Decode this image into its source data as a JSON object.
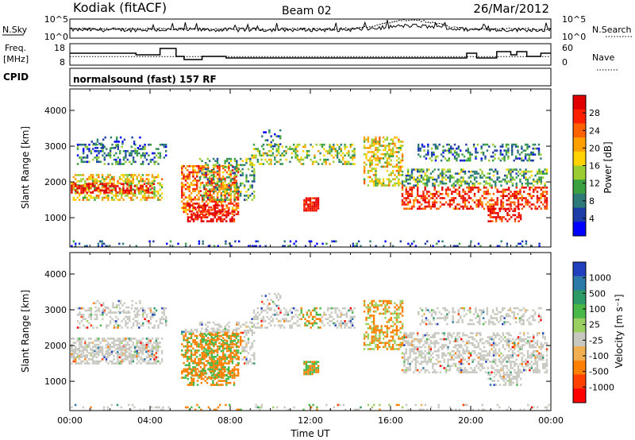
{
  "header": {
    "station": "Kodiak (fitACF)",
    "beam": "Beam 02",
    "date": "26/Mar/2012",
    "cpid_label": "CPID",
    "cpid_value": "normalsound (fast) 157 RF"
  },
  "chart_data": [
    {
      "type": "line",
      "name": "noise",
      "left_label": "N.Sky",
      "left_ticks": [
        "10^5",
        "10^0"
      ],
      "right_label": "N.Search",
      "right_ticks": [
        "10^5",
        "10^0"
      ],
      "series": [
        {
          "label": "N.Sky",
          "style": "solid"
        },
        {
          "label": "N.Search",
          "style": "dotted"
        }
      ]
    },
    {
      "type": "line",
      "name": "frequency",
      "left_label_1": "Freq.",
      "left_label_2": "[MHz]",
      "left_ticks": [
        "18",
        "8"
      ],
      "right_label": "Nave",
      "right_ticks": [
        "60",
        "0"
      ],
      "freq_mhz": {
        "x": [
          0,
          1.5,
          3.3,
          4.5,
          5.3,
          5.7,
          6.6,
          7.8,
          8.6,
          19.8,
          20.3,
          21.3,
          22.0,
          22.3,
          22.8,
          23.5,
          24
        ],
        "y": [
          14,
          14,
          13,
          17,
          12,
          10,
          12,
          11,
          11,
          14,
          11,
          15,
          13,
          15,
          12,
          14,
          14
        ]
      },
      "nave": {
        "x": [
          0,
          24
        ],
        "y": [
          22,
          22
        ]
      }
    },
    {
      "type": "heatmap",
      "name": "power",
      "ylabel": "Slant Range [km]",
      "yticks": [
        1000,
        2000,
        3000,
        4000
      ],
      "ylim": [
        180,
        4600
      ],
      "xlim": [
        0,
        24
      ],
      "colorbar_label": "Power [dB]",
      "colorbar_ticks": [
        "28",
        "24",
        "20",
        "16",
        "12",
        "8",
        "4"
      ],
      "colors": [
        "#0000ff",
        "#1c3ca8",
        "#2e7a78",
        "#3aa040",
        "#9acd32",
        "#ffd200",
        "#ffa000",
        "#ff6000",
        "#ff2000",
        "#e00000"
      ]
    },
    {
      "type": "heatmap",
      "name": "velocity",
      "ylabel": "Slant Range [km]",
      "yticks": [
        1000,
        2000,
        3000,
        4000
      ],
      "ylim": [
        180,
        4600
      ],
      "xlim": [
        0,
        24
      ],
      "xlabel": "Time UT",
      "xticks": [
        "00:00",
        "04:00",
        "08:00",
        "12:00",
        "16:00",
        "20:00",
        "00:00"
      ],
      "colorbar_label": "Velocity [m s⁻¹]",
      "colorbar_ticks": [
        "1000",
        "500",
        "100",
        "25",
        "-25",
        "-100",
        "-500",
        "-1000"
      ],
      "colors": [
        "#2040c0",
        "#2c7aa8",
        "#2e9a68",
        "#48b848",
        "#9ad060",
        "#c8c8c0",
        "#f0b050",
        "#ff8000",
        "#ff4000",
        "#ff0000"
      ]
    }
  ]
}
